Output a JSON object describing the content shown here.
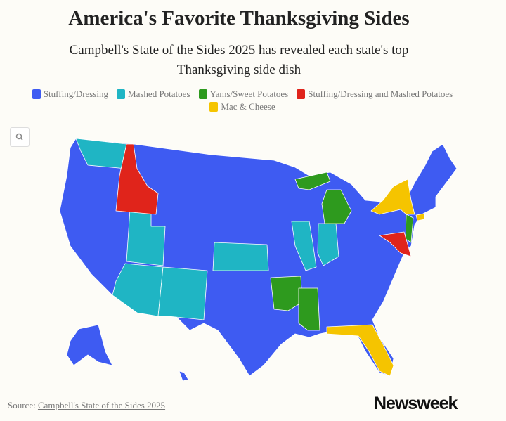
{
  "header": {
    "title": "America's Favorite Thanksgiving Sides",
    "subtitle": "Campbell's State of the Sides 2025 has revealed each state's top Thanksgiving side dish"
  },
  "legend": [
    {
      "name": "Stuffing/Dressing",
      "color": "#3e5bf2"
    },
    {
      "name": "Mashed Potatoes",
      "color": "#1fb5c4"
    },
    {
      "name": "Yams/Sweet Potatoes",
      "color": "#2e9a1e"
    },
    {
      "name": "Stuffing/Dressing and Mashed Potatoes",
      "color": "#e0241b"
    },
    {
      "name": "Mac & Cheese",
      "color": "#f5c400"
    }
  ],
  "footer": {
    "source_label": "Source:",
    "source_link": "Campbell's State of the Sides 2025",
    "logo": "Newsweek"
  }
}
